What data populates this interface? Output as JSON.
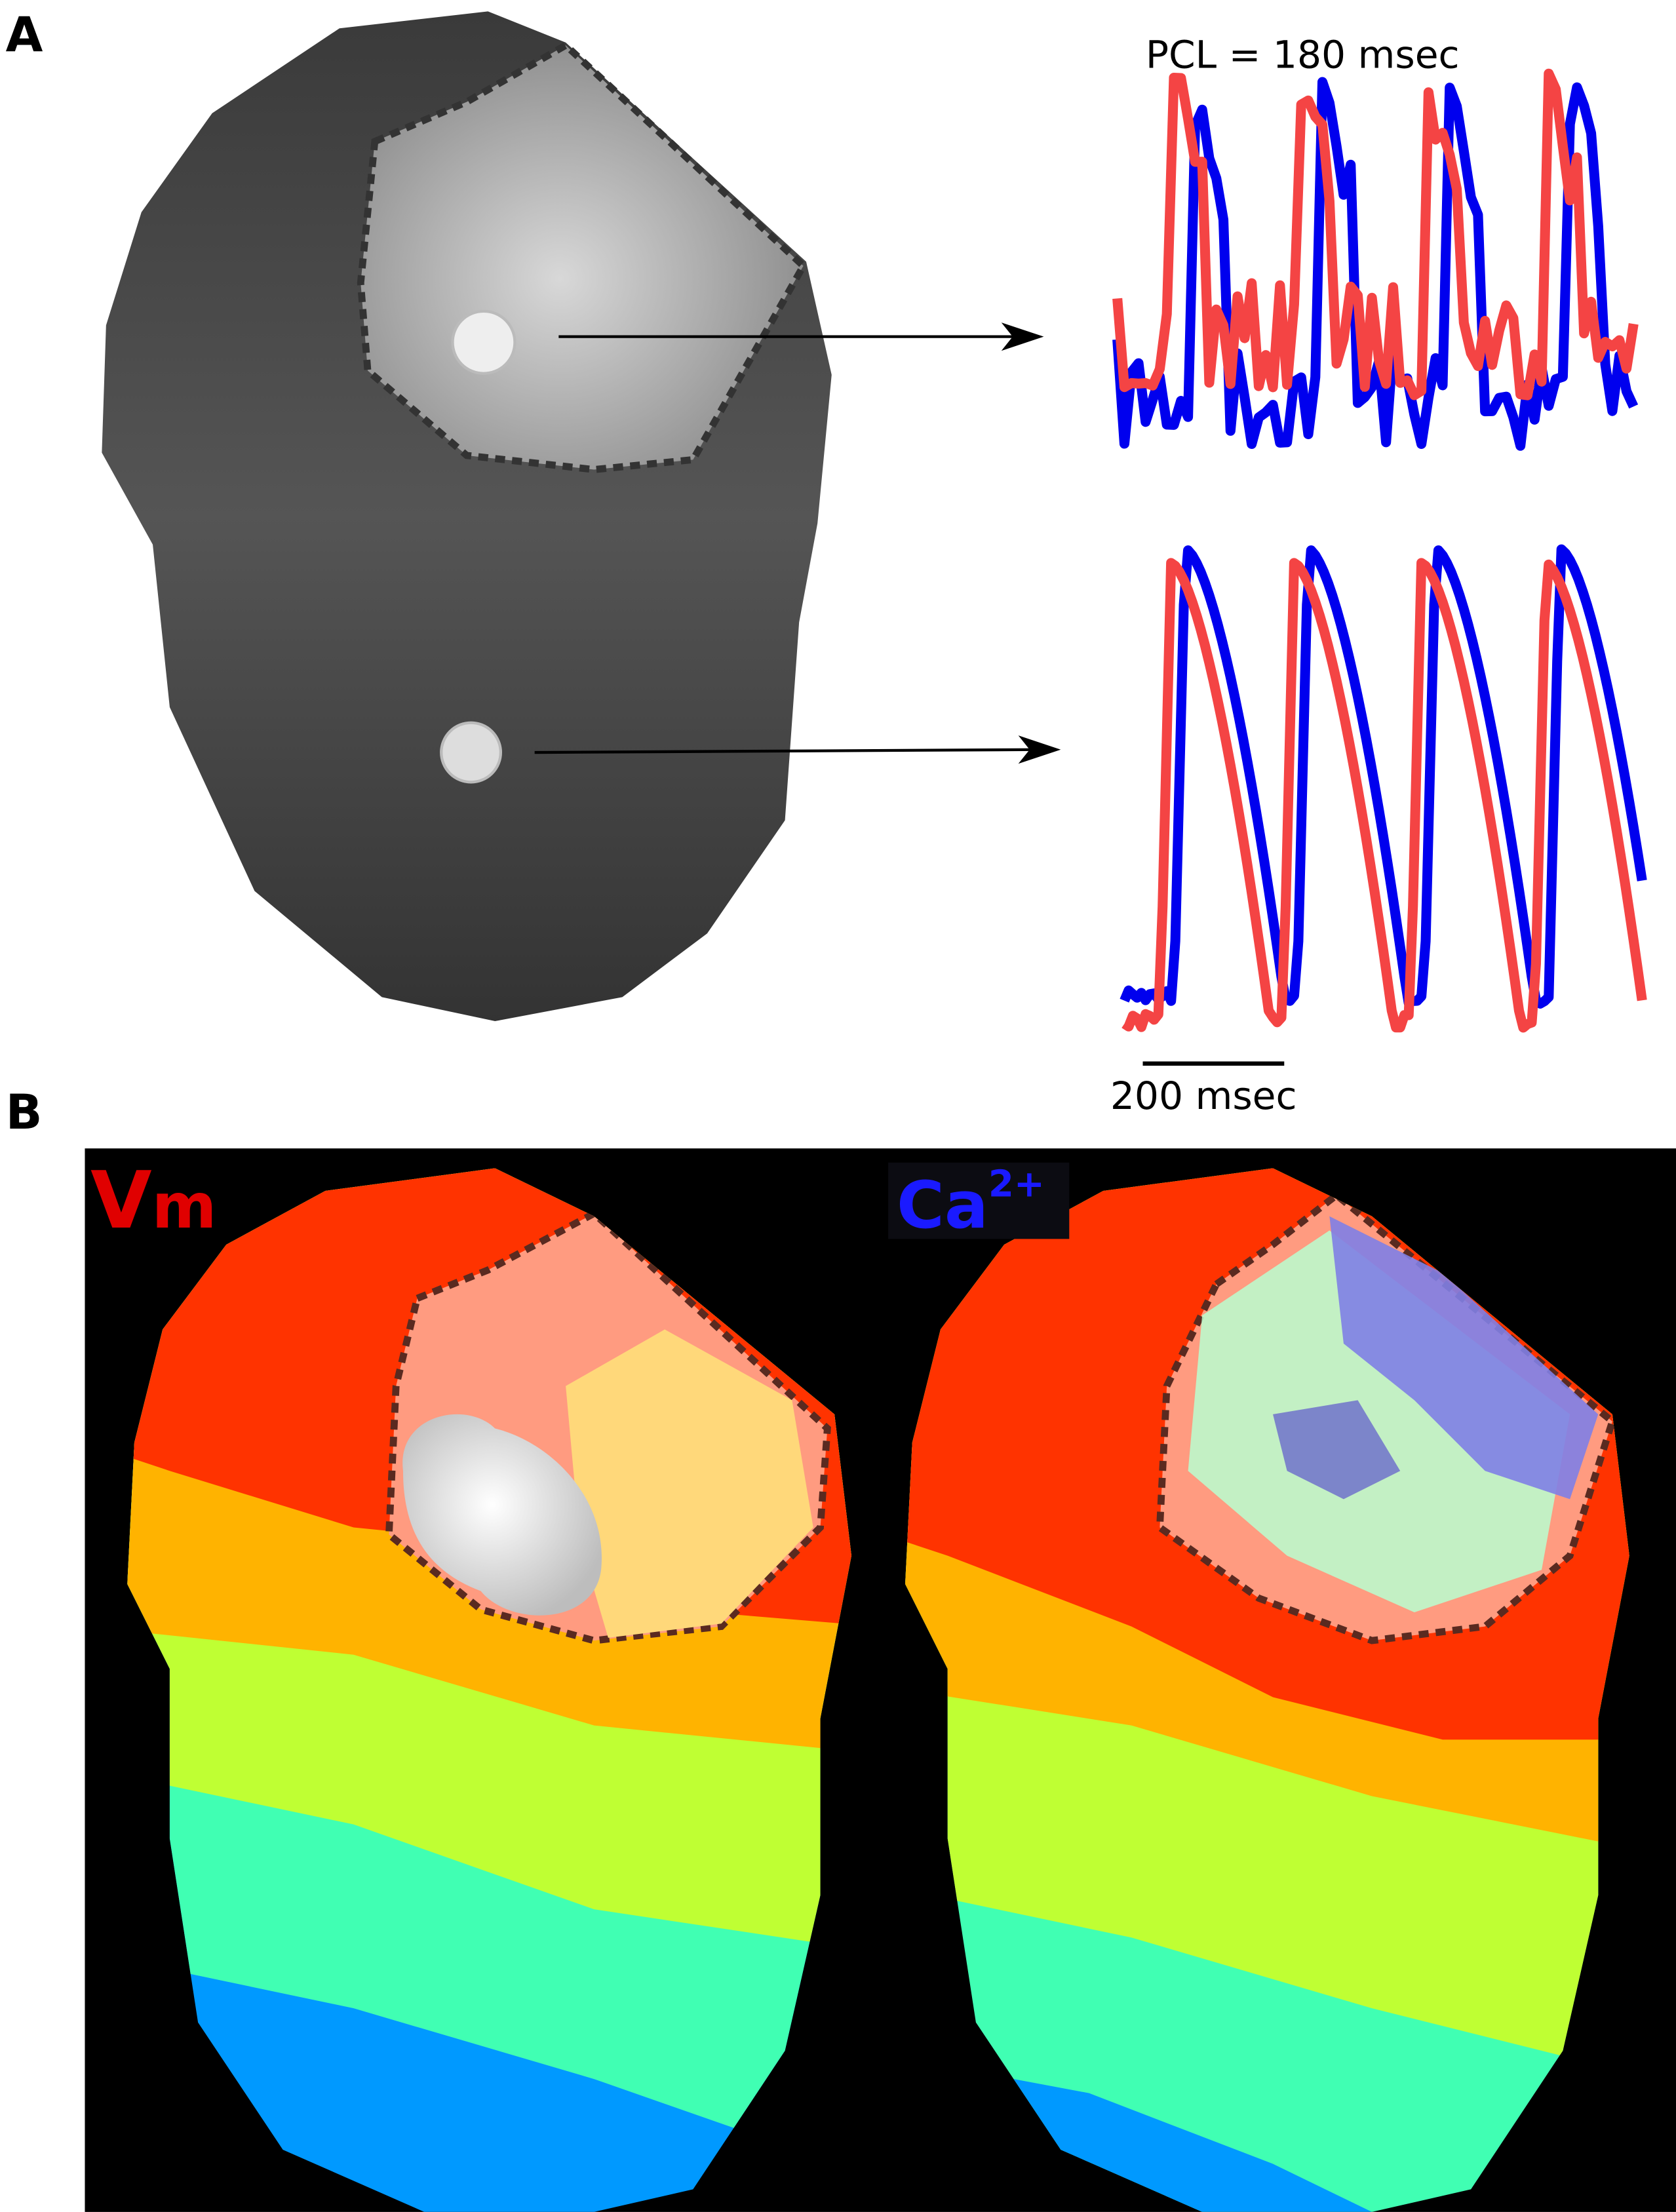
{
  "panel_a": {
    "label": "A",
    "pcl": "PCL = 180 msec",
    "scale_bar": "200 msec"
  },
  "panel_b": {
    "label": "B",
    "vm_main": "V",
    "vm_sub": "m",
    "ca_main": "Ca",
    "ca_sup": "2+"
  }
}
